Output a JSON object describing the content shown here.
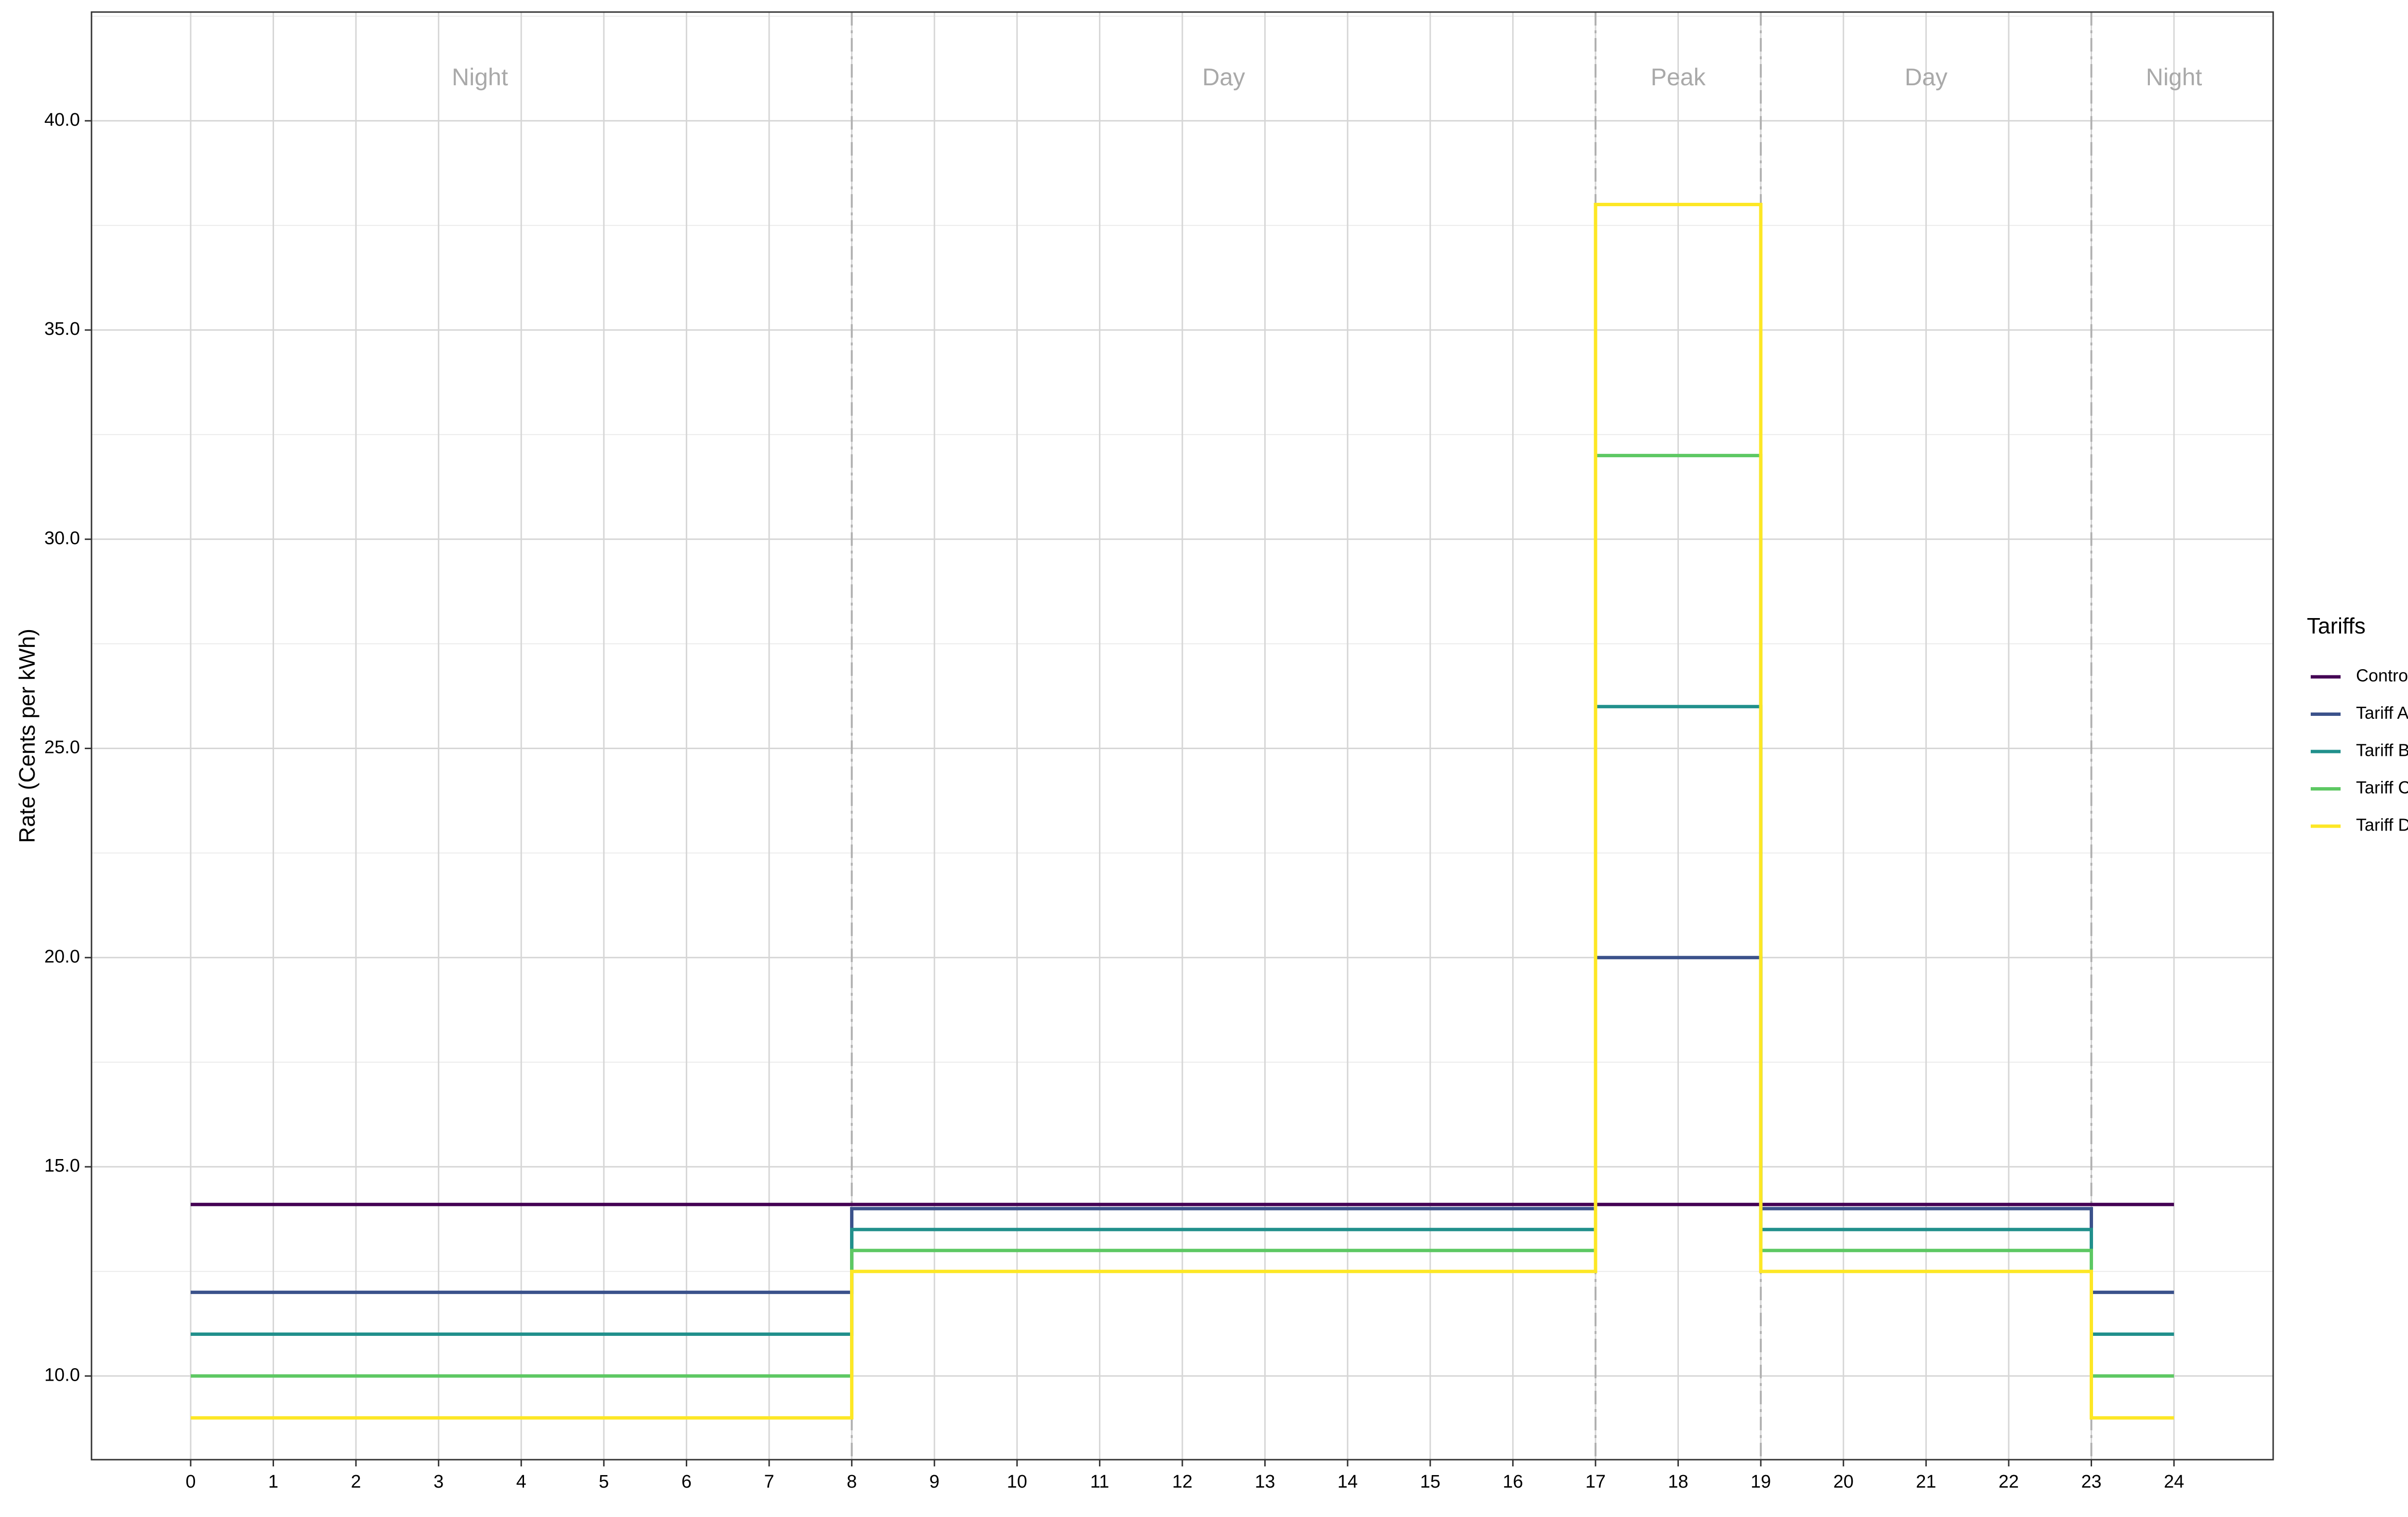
{
  "chart_data": {
    "type": "line",
    "step": true,
    "ylabel": "Rate  (Cents per kWh)",
    "xlabel": "",
    "xlim": [
      -1.2,
      25.2
    ],
    "ylim": [
      8.0,
      42.6
    ],
    "x_ticks": [
      0,
      1,
      2,
      3,
      4,
      5,
      6,
      7,
      8,
      9,
      10,
      11,
      12,
      13,
      14,
      15,
      16,
      17,
      18,
      19,
      20,
      21,
      22,
      23,
      24
    ],
    "y_ticks": [
      "10.0",
      "15.0",
      "20.0",
      "25.0",
      "30.0",
      "35.0",
      "40.0"
    ],
    "grid": true,
    "period_boundaries": [
      8,
      17,
      19,
      23
    ],
    "periods": [
      {
        "label": "Night",
        "x": 3.5
      },
      {
        "label": "Day",
        "x": 12.5
      },
      {
        "label": "Peak",
        "x": 18
      },
      {
        "label": "Day",
        "x": 21
      },
      {
        "label": "Night",
        "x": 24
      }
    ],
    "periods_y": 41.0,
    "legend": {
      "title": "Tariffs",
      "position": "right"
    },
    "series": [
      {
        "name": "Control",
        "color": "#440154",
        "points": [
          [
            0,
            14.1
          ],
          [
            24,
            14.1
          ]
        ]
      },
      {
        "name": "Tariff A",
        "color": "#3b528b",
        "points": [
          [
            0,
            12.0
          ],
          [
            8,
            12.0
          ],
          [
            8,
            14.0
          ],
          [
            17,
            14.0
          ],
          [
            17,
            20.0
          ],
          [
            19,
            20.0
          ],
          [
            19,
            14.0
          ],
          [
            23,
            14.0
          ],
          [
            23,
            12.0
          ],
          [
            24,
            12.0
          ]
        ]
      },
      {
        "name": "Tariff B",
        "color": "#21908c",
        "points": [
          [
            0,
            11.0
          ],
          [
            8,
            11.0
          ],
          [
            8,
            13.5
          ],
          [
            17,
            13.5
          ],
          [
            17,
            26.0
          ],
          [
            19,
            26.0
          ],
          [
            19,
            13.5
          ],
          [
            23,
            13.5
          ],
          [
            23,
            11.0
          ],
          [
            24,
            11.0
          ]
        ]
      },
      {
        "name": "Tariff C",
        "color": "#5dc863",
        "points": [
          [
            0,
            10.0
          ],
          [
            8,
            10.0
          ],
          [
            8,
            13.0
          ],
          [
            17,
            13.0
          ],
          [
            17,
            32.0
          ],
          [
            19,
            32.0
          ],
          [
            19,
            13.0
          ],
          [
            23,
            13.0
          ],
          [
            23,
            10.0
          ],
          [
            24,
            10.0
          ]
        ]
      },
      {
        "name": "Tariff D",
        "color": "#fde725",
        "points": [
          [
            0,
            9.0
          ],
          [
            8,
            9.0
          ],
          [
            8,
            12.5
          ],
          [
            17,
            12.5
          ],
          [
            17,
            38.0
          ],
          [
            19,
            38.0
          ],
          [
            19,
            12.5
          ],
          [
            23,
            12.5
          ],
          [
            23,
            9.0
          ],
          [
            24,
            9.0
          ]
        ]
      }
    ]
  }
}
